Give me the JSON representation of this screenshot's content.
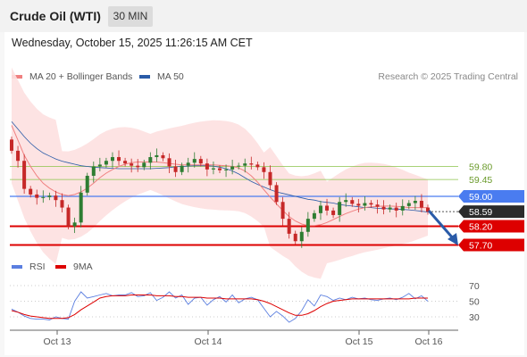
{
  "header": {
    "title": "Crude Oil (WTI)",
    "timeframe": "30 MIN"
  },
  "datetime": "Wednesday, October 15, 2025 11:26:15 AM CET",
  "legend": {
    "ma20_label": "MA 20 + Bollinger Bands",
    "ma50_label": "MA 50",
    "credit": "Research © 2025 Trading Central",
    "rsi_label": "RSI",
    "ma9_label": "9MA"
  },
  "colors": {
    "ma20": "#f08080",
    "ma50": "#2a5ba8",
    "bands": "#fde0e0",
    "up": "#2e7d32",
    "down": "#c62828",
    "resistance": "#8bc34a",
    "pivot": "#4a7cf0",
    "support": "#dd0000",
    "current": "#2b2b2b",
    "arrow": "#2a5ba8",
    "rsi": "#5b7fe0",
    "rsi_ma": "#dd0000"
  },
  "chart_data": {
    "type": "candlestick",
    "price_levels": [
      {
        "label": "59.80",
        "value": 59.8,
        "kind": "resistance"
      },
      {
        "label": "59.45",
        "value": 59.45,
        "kind": "resistance"
      },
      {
        "label": "59.00",
        "value": 59.0,
        "kind": "pivot"
      },
      {
        "label": "58.59",
        "value": 58.59,
        "kind": "current"
      },
      {
        "label": "58.20",
        "value": 58.2,
        "kind": "support"
      },
      {
        "label": "57.70",
        "value": 57.7,
        "kind": "support"
      }
    ],
    "x_ticks": [
      "Oct 13",
      "Oct 14",
      "Oct 15",
      "Oct 16"
    ],
    "rsi_ticks": [
      "70",
      "50",
      "30"
    ],
    "price_close": [
      60.22,
      59.95,
      59.2,
      59.05,
      58.96,
      58.98,
      59.02,
      58.9,
      58.7,
      58.2,
      58.3,
      59.1,
      59.55,
      59.8,
      59.85,
      59.95,
      60.05,
      59.95,
      59.88,
      59.82,
      59.78,
      59.9,
      60.05,
      60.1,
      60.02,
      59.8,
      59.65,
      59.82,
      59.9,
      60.0,
      59.88,
      59.72,
      59.75,
      59.7,
      59.72,
      59.8,
      59.82,
      59.88,
      59.85,
      59.78,
      59.65,
      59.3,
      58.85,
      58.4,
      58.0,
      57.8,
      58.05,
      58.4,
      58.55,
      58.75,
      58.62,
      58.5,
      58.85,
      58.9,
      58.8,
      58.75,
      58.82,
      58.78,
      58.72,
      58.65,
      58.7,
      58.62,
      58.74,
      58.82,
      58.88,
      58.7,
      58.59
    ],
    "ma20": [
      60.9,
      60.5,
      60.1,
      59.8,
      59.55,
      59.35,
      59.22,
      59.12,
      59.05,
      59.02,
      59.05,
      59.12,
      59.22,
      59.35,
      59.5,
      59.62,
      59.72,
      59.8,
      59.86,
      59.9,
      59.92,
      59.92,
      59.92,
      59.92,
      59.9,
      59.88,
      59.86,
      59.84,
      59.84,
      59.84,
      59.84,
      59.84,
      59.84,
      59.83,
      59.82,
      59.8,
      59.76,
      59.68,
      59.55,
      59.38,
      59.18,
      58.98,
      58.8,
      58.62,
      58.46,
      58.34,
      58.26,
      58.22,
      58.22,
      58.24,
      58.3,
      58.38,
      58.46,
      58.54,
      58.6,
      58.66,
      58.7,
      58.72,
      58.73,
      58.74,
      58.74,
      58.73,
      58.72,
      58.7,
      58.7,
      58.7,
      58.7
    ],
    "ma50": [
      61.0,
      60.8,
      60.6,
      60.42,
      60.28,
      60.16,
      60.08,
      60.0,
      59.94,
      59.9,
      59.86,
      59.82,
      59.8,
      59.78,
      59.77,
      59.76,
      59.75,
      59.74,
      59.74,
      59.74,
      59.74,
      59.74,
      59.74,
      59.75,
      59.76,
      59.77,
      59.79,
      59.8,
      59.81,
      59.82,
      59.82,
      59.82,
      59.81,
      59.78,
      59.74,
      59.68,
      59.6,
      59.5,
      59.4,
      59.32,
      59.25,
      59.18,
      59.12,
      59.08,
      59.04,
      59.0,
      58.96,
      58.92,
      58.9,
      58.86,
      58.84,
      58.82,
      58.78,
      58.76,
      58.74,
      58.72,
      58.7,
      58.7,
      58.68,
      58.68,
      58.66,
      58.66,
      58.65,
      58.64,
      58.62,
      58.6,
      58.58
    ],
    "rsi": [
      40,
      36,
      31,
      28,
      27,
      27,
      26,
      30,
      28,
      27,
      50,
      62,
      54,
      56,
      58,
      60,
      57,
      58,
      58,
      61,
      56,
      57,
      61,
      51,
      55,
      62,
      54,
      58,
      46,
      54,
      55,
      45,
      52,
      56,
      49,
      58,
      48,
      53,
      55,
      52,
      41,
      30,
      37,
      31,
      23,
      28,
      38,
      52,
      44,
      58,
      56,
      51,
      54,
      52,
      55,
      53,
      54,
      52,
      51,
      53,
      54,
      52,
      55,
      60,
      53,
      57,
      50
    ],
    "rsi_ma": [
      38,
      36,
      33,
      31,
      30,
      29,
      28,
      28,
      28,
      29,
      33,
      39,
      44,
      49,
      54,
      56,
      57,
      57,
      57,
      58,
      58,
      58,
      58,
      57,
      57,
      57,
      56,
      56,
      55,
      55,
      55,
      54,
      54,
      54,
      53,
      53,
      53,
      53,
      53,
      52,
      50,
      47,
      43,
      39,
      35,
      32,
      32,
      34,
      38,
      43,
      47,
      50,
      51,
      52,
      53,
      53,
      53,
      53,
      53,
      53,
      53,
      53,
      53,
      53,
      54,
      54,
      54
    ]
  }
}
